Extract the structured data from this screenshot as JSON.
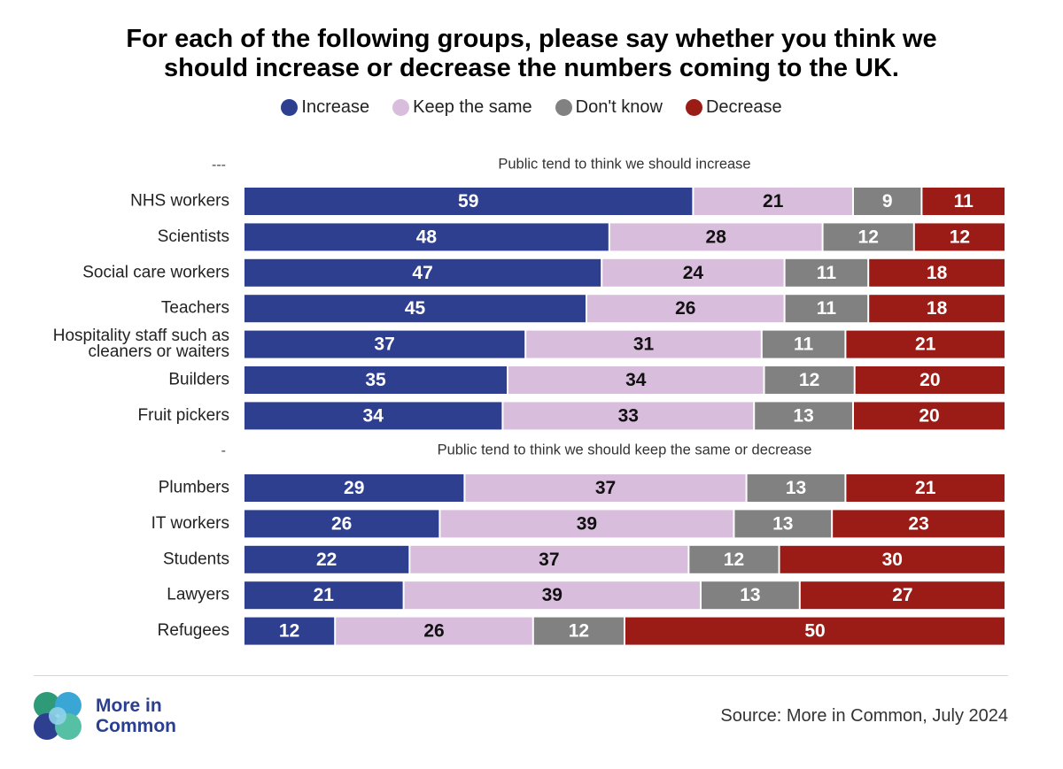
{
  "title_lines": [
    "For each of the following groups, please say whether you think we",
    "should increase or decrease the numbers coming to the UK."
  ],
  "legend": [
    {
      "label": "Increase",
      "color": "#2e3f8f"
    },
    {
      "label": "Keep the same",
      "color": "#d9bddd"
    },
    {
      "label": "Don't know",
      "color": "#818181"
    },
    {
      "label": "Decrease",
      "color": "#9b1c17"
    }
  ],
  "chart_data": {
    "type": "bar",
    "orientation": "horizontal",
    "stacked": true,
    "series": [
      {
        "name": "Increase",
        "color": "#2e3f8f"
      },
      {
        "name": "Keep the same",
        "color": "#d9bddd"
      },
      {
        "name": "Don't know",
        "color": "#818181"
      },
      {
        "name": "Decrease",
        "color": "#9b1c17"
      }
    ],
    "sections": [
      {
        "marker": "---",
        "heading": "Public tend to think we should increase",
        "rows": [
          {
            "label": "NHS workers",
            "values": [
              59,
              21,
              9,
              11
            ]
          },
          {
            "label": "Scientists",
            "values": [
              48,
              28,
              12,
              12
            ]
          },
          {
            "label": "Social care workers",
            "values": [
              47,
              24,
              11,
              18
            ]
          },
          {
            "label": "Teachers",
            "values": [
              45,
              26,
              11,
              18
            ]
          },
          {
            "label": "Hospitality staff such as cleaners or waiters",
            "label_lines": [
              "Hospitality staff such as",
              "cleaners or waiters"
            ],
            "values": [
              37,
              31,
              11,
              21
            ]
          },
          {
            "label": "Builders",
            "values": [
              35,
              34,
              12,
              20
            ]
          },
          {
            "label": "Fruit pickers",
            "values": [
              34,
              33,
              13,
              20
            ]
          }
        ]
      },
      {
        "marker": "-",
        "heading": "Public tend to think we should keep the same or decrease",
        "rows": [
          {
            "label": "Plumbers",
            "values": [
              29,
              37,
              13,
              21
            ]
          },
          {
            "label": "IT workers",
            "values": [
              26,
              39,
              13,
              23
            ]
          },
          {
            "label": "Students",
            "values": [
              22,
              37,
              12,
              30
            ]
          },
          {
            "label": "Lawyers",
            "values": [
              21,
              39,
              13,
              27
            ]
          },
          {
            "label": "Refugees",
            "values": [
              12,
              26,
              12,
              50
            ]
          }
        ]
      }
    ]
  },
  "logo": {
    "text_lines": [
      "More in",
      "Common"
    ],
    "icon": "more-in-common-logo-icon"
  },
  "source": "Source: More in Common, July 2024"
}
